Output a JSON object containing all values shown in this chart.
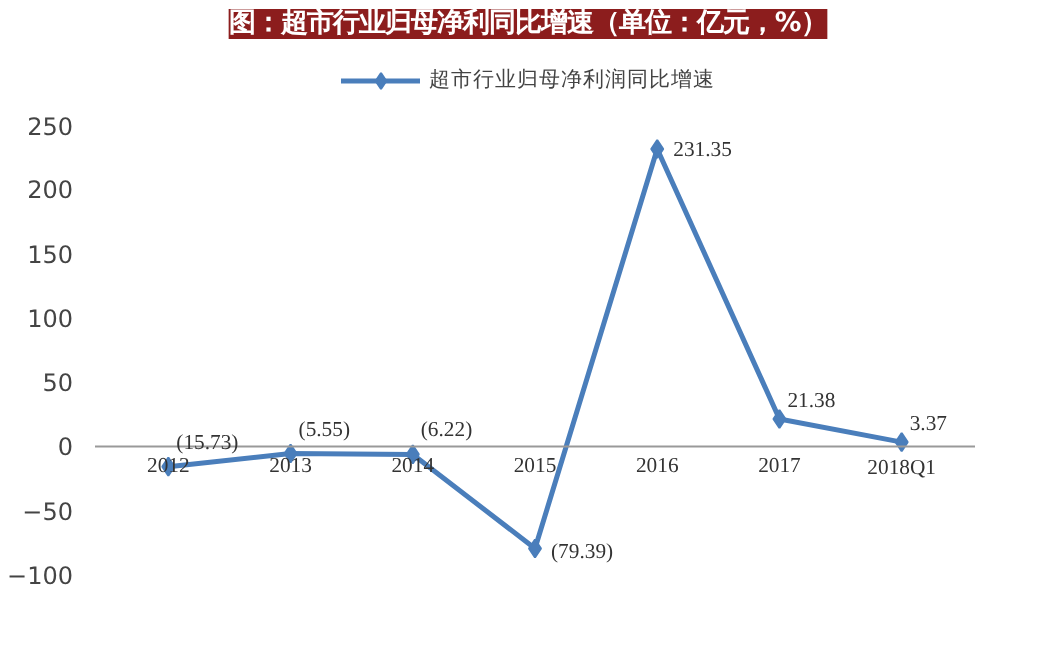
{
  "chart_data": {
    "type": "line",
    "title": "图：超市行业归母净利同比增速（单位：亿元，%）",
    "categories": [
      "2012",
      "2013",
      "2014",
      "2015",
      "2016",
      "2017",
      "2018Q1"
    ],
    "series": [
      {
        "name": "超市行业归母净利润同比增速",
        "color": "#4a7ebb",
        "values": [
          -15.73,
          -5.55,
          -6.22,
          -79.39,
          231.35,
          21.38,
          3.37
        ],
        "value_labels": [
          "(15.73)",
          "(5.55)",
          "(6.22)",
          "(79.39)",
          "231.35",
          "21.38",
          "3.37"
        ]
      }
    ],
    "ylim": [
      -100,
      250
    ],
    "yticks": [
      -100,
      -50,
      0,
      50,
      100,
      150,
      200,
      250
    ],
    "grid": false,
    "legend": "top",
    "marker": "diamond",
    "line_style": "solid"
  }
}
